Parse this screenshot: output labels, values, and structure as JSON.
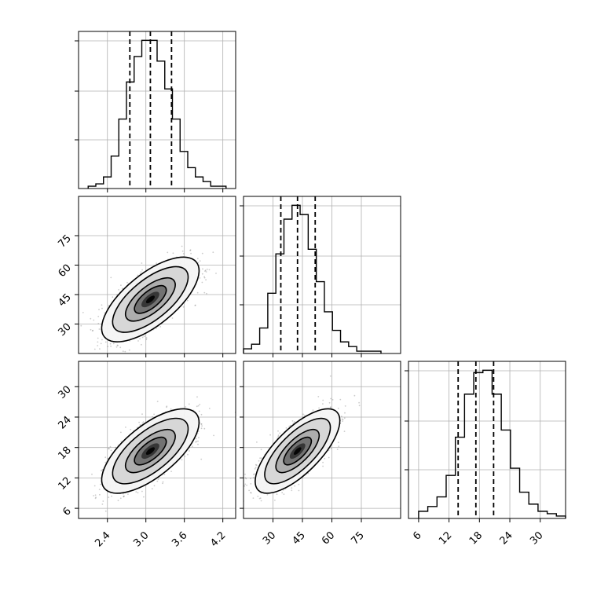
{
  "chart_data": {
    "type": "corner",
    "parameters": [
      {
        "id": "p0",
        "range": [
          1.95,
          4.4
        ],
        "ticks": [
          2.4,
          3.0,
          3.6,
          4.2
        ],
        "tick_labels": [
          "2.4",
          "3.0",
          "3.6",
          "4.2"
        ],
        "quantiles": [
          2.75,
          3.07,
          3.4
        ]
      },
      {
        "id": "p1",
        "range": [
          15,
          95
        ],
        "ticks": [
          30,
          45,
          60,
          75
        ],
        "tick_labels": [
          "30",
          "45",
          "60",
          "75"
        ],
        "quantiles": [
          34,
          42.5,
          51.5
        ]
      },
      {
        "id": "p2",
        "range": [
          4,
          35
        ],
        "ticks": [
          6,
          12,
          18,
          24,
          30
        ],
        "tick_labels": [
          "6",
          "12",
          "18",
          "24",
          "30"
        ],
        "quantiles": [
          13.8,
          17.3,
          20.8
        ]
      }
    ],
    "marginals": [
      {
        "param": "p0",
        "bin_edges_range": [
          2.1,
          4.25
        ],
        "counts": [
          1,
          2,
          5,
          14,
          30,
          46,
          57,
          64,
          64,
          55,
          43,
          30,
          16,
          9,
          5,
          3,
          1,
          1
        ]
      },
      {
        "param": "p1",
        "bin_edges_range": [
          15,
          85
        ],
        "counts": [
          2,
          4,
          11,
          26,
          43,
          58,
          64,
          60,
          45,
          31,
          18,
          10,
          5,
          3,
          1,
          1,
          1
        ]
      },
      {
        "param": "p2",
        "bin_edges_range": [
          6,
          35
        ],
        "counts": [
          3,
          5,
          9,
          18,
          34,
          52,
          61,
          62,
          52,
          37,
          21,
          11,
          6,
          3,
          2,
          1
        ]
      }
    ],
    "joint": [
      {
        "x": "p0",
        "y": "p1",
        "center": [
          3.07,
          42.5
        ],
        "sigma": [
          0.31,
          8.8
        ],
        "rho": 0.68
      },
      {
        "x": "p0",
        "y": "p2",
        "center": [
          3.07,
          17.3
        ],
        "sigma": [
          0.31,
          3.4
        ],
        "rho": 0.68
      },
      {
        "x": "p1",
        "y": "p2",
        "center": [
          42.5,
          17.3
        ],
        "sigma": [
          8.8,
          3.4
        ],
        "rho": 0.72
      }
    ],
    "xlabel": "",
    "ylabel": "",
    "title": ""
  }
}
